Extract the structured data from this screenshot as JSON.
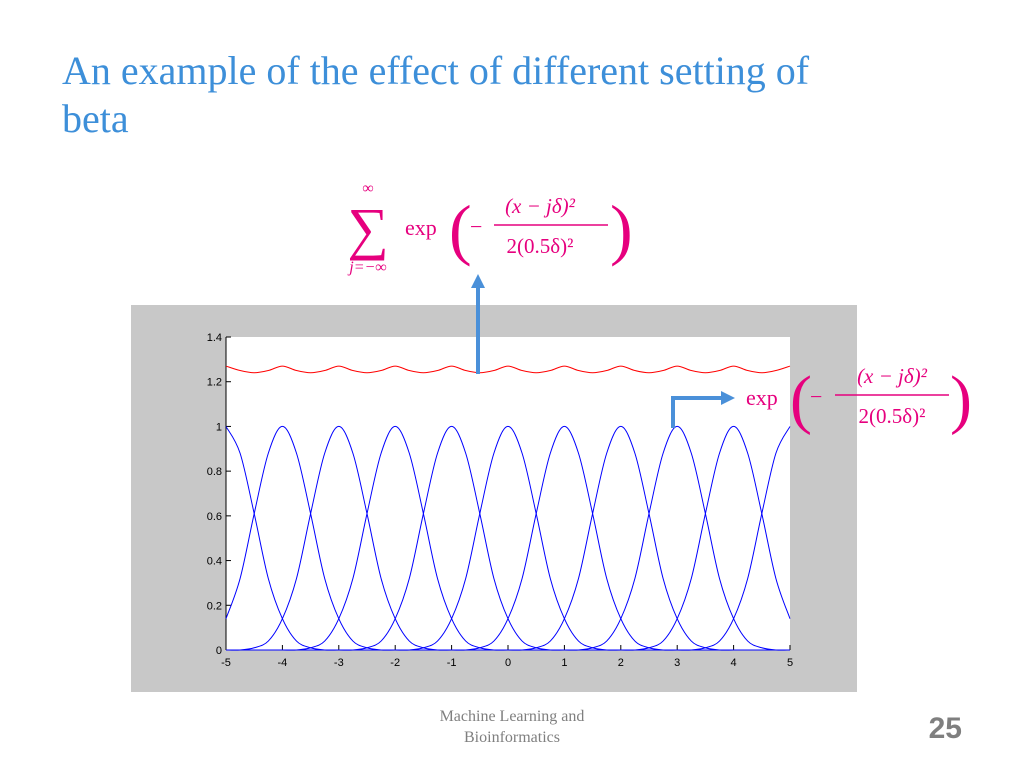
{
  "slide": {
    "title": "An example of the effect of different setting of beta",
    "footer": "Machine Learning and Bioinformatics",
    "page_number": "25",
    "sum_formula": {
      "upper": "∞",
      "symbol": "∑",
      "lower": "j=−∞",
      "func": "exp",
      "open": "(",
      "minus": "−",
      "numerator": "(x − jδ)²",
      "denominator": "2(0.5δ)²",
      "close": ")"
    },
    "kernel_formula": {
      "func": "exp",
      "open": "(",
      "minus": "−",
      "numerator": "(x − jδ)²",
      "denominator": "2(0.5δ)²",
      "close": ")"
    }
  },
  "chart_data": {
    "type": "line",
    "x": [
      -5,
      -4.75,
      -4.5,
      -4.25,
      -4,
      -3.75,
      -3.5,
      -3.25,
      -3,
      -2.75,
      -2.5,
      -2.25,
      -2,
      -1.75,
      -1.5,
      -1.25,
      -1,
      -0.75,
      -0.5,
      -0.25,
      0,
      0.25,
      0.5,
      0.75,
      1,
      1.25,
      1.5,
      1.75,
      2,
      2.25,
      2.5,
      2.75,
      3,
      3.25,
      3.5,
      3.75,
      4,
      4.25,
      4.5,
      4.75,
      5
    ],
    "xlim": [
      -5,
      5
    ],
    "xticks": [
      -5,
      -4,
      -3,
      -2,
      -1,
      0,
      1,
      2,
      3,
      4,
      5
    ],
    "ylim": [
      0,
      1.4
    ],
    "yticks": [
      0,
      0.2,
      0.4,
      0.6,
      0.8,
      1,
      1.2,
      1.4
    ],
    "series": [
      {
        "color": "#ff0000",
        "values": [
          1.27,
          1.25,
          1.24,
          1.25,
          1.27,
          1.25,
          1.24,
          1.25,
          1.27,
          1.25,
          1.24,
          1.25,
          1.27,
          1.25,
          1.24,
          1.25,
          1.27,
          1.25,
          1.24,
          1.25,
          1.27,
          1.25,
          1.24,
          1.25,
          1.27,
          1.25,
          1.24,
          1.25,
          1.27,
          1.25,
          1.24,
          1.25,
          1.27,
          1.25,
          1.24,
          1.25,
          1.27,
          1.25,
          1.24,
          1.25,
          1.27
        ]
      },
      {
        "color": "#0000ff",
        "values": [
          1,
          0.88,
          0.61,
          0.32,
          0.14,
          0.04,
          0.01,
          0,
          0,
          0,
          0,
          0,
          0,
          0,
          0,
          0,
          0,
          0,
          0,
          0,
          0,
          0,
          0,
          0,
          0,
          0,
          0,
          0,
          0,
          0,
          0,
          0,
          0,
          0,
          0,
          0,
          0,
          0,
          0,
          0,
          0
        ]
      },
      {
        "color": "#0000ff",
        "values": [
          0.14,
          0.32,
          0.61,
          0.88,
          1,
          0.88,
          0.61,
          0.32,
          0.14,
          0.04,
          0.01,
          0,
          0,
          0,
          0,
          0,
          0,
          0,
          0,
          0,
          0,
          0,
          0,
          0,
          0,
          0,
          0,
          0,
          0,
          0,
          0,
          0,
          0,
          0,
          0,
          0,
          0,
          0,
          0,
          0,
          0
        ]
      },
      {
        "color": "#0000ff",
        "values": [
          0,
          0,
          0.01,
          0.04,
          0.14,
          0.32,
          0.61,
          0.88,
          1,
          0.88,
          0.61,
          0.32,
          0.14,
          0.04,
          0.01,
          0,
          0,
          0,
          0,
          0,
          0,
          0,
          0,
          0,
          0,
          0,
          0,
          0,
          0,
          0,
          0,
          0,
          0,
          0,
          0,
          0,
          0,
          0,
          0,
          0,
          0
        ]
      },
      {
        "color": "#0000ff",
        "values": [
          0,
          0,
          0,
          0,
          0,
          0,
          0.01,
          0.04,
          0.14,
          0.32,
          0.61,
          0.88,
          1,
          0.88,
          0.61,
          0.32,
          0.14,
          0.04,
          0.01,
          0,
          0,
          0,
          0,
          0,
          0,
          0,
          0,
          0,
          0,
          0,
          0,
          0,
          0,
          0,
          0,
          0,
          0,
          0,
          0,
          0,
          0
        ]
      },
      {
        "color": "#0000ff",
        "values": [
          0,
          0,
          0,
          0,
          0,
          0,
          0,
          0,
          0,
          0,
          0.01,
          0.04,
          0.14,
          0.32,
          0.61,
          0.88,
          1,
          0.88,
          0.61,
          0.32,
          0.14,
          0.04,
          0.01,
          0,
          0,
          0,
          0,
          0,
          0,
          0,
          0,
          0,
          0,
          0,
          0,
          0,
          0,
          0,
          0,
          0,
          0
        ]
      },
      {
        "color": "#0000ff",
        "values": [
          0,
          0,
          0,
          0,
          0,
          0,
          0,
          0,
          0,
          0,
          0,
          0,
          0,
          0,
          0.01,
          0.04,
          0.14,
          0.32,
          0.61,
          0.88,
          1,
          0.88,
          0.61,
          0.32,
          0.14,
          0.04,
          0.01,
          0,
          0,
          0,
          0,
          0,
          0,
          0,
          0,
          0,
          0,
          0,
          0,
          0,
          0
        ]
      },
      {
        "color": "#0000ff",
        "values": [
          0,
          0,
          0,
          0,
          0,
          0,
          0,
          0,
          0,
          0,
          0,
          0,
          0,
          0,
          0,
          0,
          0,
          0,
          0.01,
          0.04,
          0.14,
          0.32,
          0.61,
          0.88,
          1,
          0.88,
          0.61,
          0.32,
          0.14,
          0.04,
          0.01,
          0,
          0,
          0,
          0,
          0,
          0,
          0,
          0,
          0,
          0
        ]
      },
      {
        "color": "#0000ff",
        "values": [
          0,
          0,
          0,
          0,
          0,
          0,
          0,
          0,
          0,
          0,
          0,
          0,
          0,
          0,
          0,
          0,
          0,
          0,
          0,
          0,
          0,
          0,
          0.01,
          0.04,
          0.14,
          0.32,
          0.61,
          0.88,
          1,
          0.88,
          0.61,
          0.32,
          0.14,
          0.04,
          0.01,
          0,
          0,
          0,
          0,
          0,
          0
        ]
      },
      {
        "color": "#0000ff",
        "values": [
          0,
          0,
          0,
          0,
          0,
          0,
          0,
          0,
          0,
          0,
          0,
          0,
          0,
          0,
          0,
          0,
          0,
          0,
          0,
          0,
          0,
          0,
          0,
          0,
          0,
          0,
          0.01,
          0.04,
          0.14,
          0.32,
          0.61,
          0.88,
          1,
          0.88,
          0.61,
          0.32,
          0.14,
          0.04,
          0.01,
          0,
          0
        ]
      },
      {
        "color": "#0000ff",
        "values": [
          0,
          0,
          0,
          0,
          0,
          0,
          0,
          0,
          0,
          0,
          0,
          0,
          0,
          0,
          0,
          0,
          0,
          0,
          0,
          0,
          0,
          0,
          0,
          0,
          0,
          0,
          0,
          0,
          0,
          0,
          0.01,
          0.04,
          0.14,
          0.32,
          0.61,
          0.88,
          1,
          0.88,
          0.61,
          0.32,
          0.14
        ]
      },
      {
        "color": "#0000ff",
        "values": [
          0,
          0,
          0,
          0,
          0,
          0,
          0,
          0,
          0,
          0,
          0,
          0,
          0,
          0,
          0,
          0,
          0,
          0,
          0,
          0,
          0,
          0,
          0,
          0,
          0,
          0,
          0,
          0,
          0,
          0,
          0,
          0,
          0,
          0,
          0.01,
          0.04,
          0.14,
          0.32,
          0.61,
          0.88,
          1
        ]
      }
    ]
  }
}
